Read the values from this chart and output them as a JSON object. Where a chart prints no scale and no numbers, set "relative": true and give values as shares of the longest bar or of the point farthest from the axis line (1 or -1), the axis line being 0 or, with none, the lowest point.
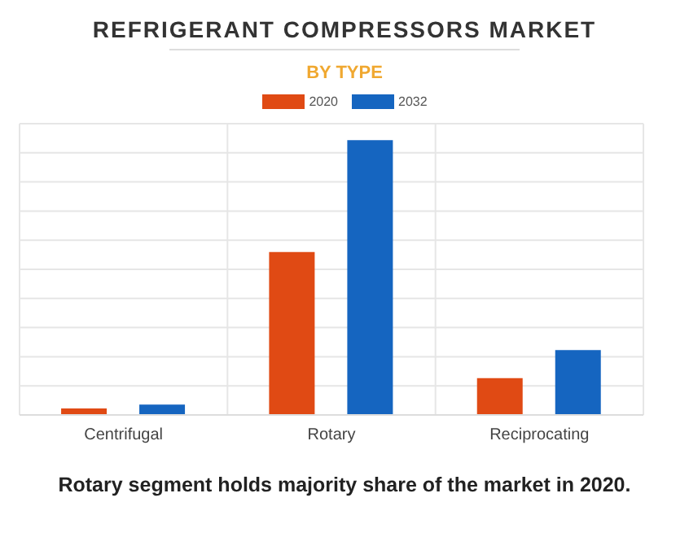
{
  "chart_data": {
    "type": "bar",
    "title": "REFRIGERANT COMPRESSORS MARKET",
    "subtitle": "BY TYPE",
    "categories": [
      "Centrifugal",
      "Rotary",
      "Reciprocating"
    ],
    "relative": true,
    "series": [
      {
        "name": "2020",
        "color": "#e04a14",
        "values": [
          0.024,
          0.593,
          0.134
        ]
      },
      {
        "name": "2032",
        "color": "#1565c0",
        "values": [
          0.038,
          1,
          0.236
        ]
      }
    ],
    "grid": true,
    "legend": "top",
    "annotations": [
      "Rotary segment holds majority share of the market in 2020."
    ]
  }
}
